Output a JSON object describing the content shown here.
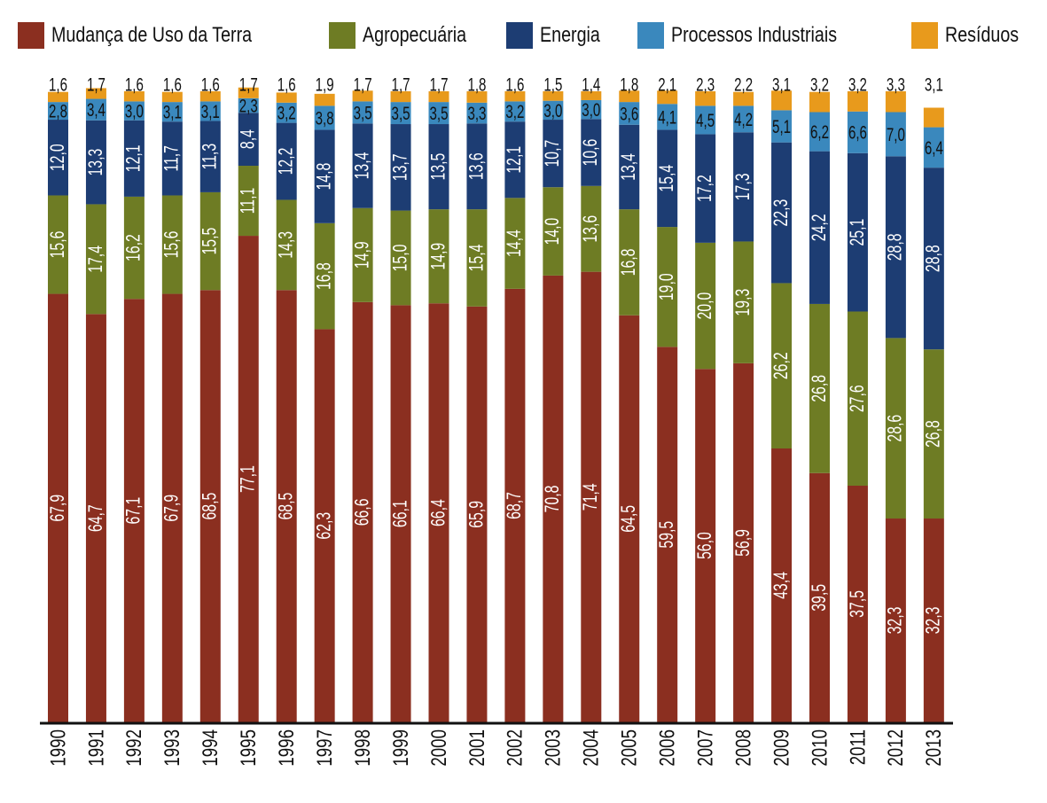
{
  "chart_data": {
    "type": "bar",
    "stacked": true,
    "percent": true,
    "title": "",
    "xlabel": "",
    "ylabel": "",
    "ylim": [
      0,
      100
    ],
    "grid": false,
    "legend_position": "top",
    "categories": [
      "1990",
      "1991",
      "1992",
      "1993",
      "1994",
      "1995",
      "1996",
      "1997",
      "1998",
      "1999",
      "2000",
      "2001",
      "2002",
      "2003",
      "2004",
      "2005",
      "2006",
      "2007",
      "2008",
      "2009",
      "2010",
      "2011",
      "2012",
      "2013"
    ],
    "series": [
      {
        "name": "Mudança de Uso da Terra",
        "color": "#8b2f20",
        "label_color": "#ffffff",
        "values": [
          67.9,
          64.7,
          67.1,
          67.9,
          68.5,
          77.1,
          68.5,
          62.3,
          66.6,
          66.1,
          66.4,
          65.9,
          68.7,
          70.8,
          71.4,
          64.5,
          59.5,
          56.0,
          56.9,
          43.4,
          39.5,
          37.5,
          32.3,
          32.3
        ],
        "labels": [
          "67,9",
          "64,7",
          "67,1",
          "67,9",
          "68,5",
          "77,1",
          "68,5",
          "62,3",
          "66,6",
          "66,1",
          "66,4",
          "65,9",
          "68,7",
          "70,8",
          "71,4",
          "64,5",
          "59,5",
          "56,0",
          "56,9",
          "43,4",
          "39,5",
          "37,5",
          "32,3",
          "32,3"
        ]
      },
      {
        "name": "Agropecuária",
        "color": "#6e7c24",
        "label_color": "#ffffff",
        "values": [
          15.6,
          17.4,
          16.2,
          15.6,
          15.5,
          11.1,
          14.3,
          16.8,
          14.9,
          15.0,
          14.9,
          15.4,
          14.4,
          14.0,
          13.6,
          16.8,
          19.0,
          20.0,
          19.3,
          26.2,
          26.8,
          27.6,
          28.6,
          26.8
        ],
        "labels": [
          "15,6",
          "17,4",
          "16,2",
          "15,6",
          "15,5",
          "11,1",
          "14,3",
          "16,8",
          "14,9",
          "15,0",
          "14,9",
          "15,4",
          "14,4",
          "14,0",
          "13,6",
          "16,8",
          "19,0",
          "20,0",
          "19,3",
          "26,2",
          "26,8",
          "27,6",
          "28,6",
          "26,8"
        ]
      },
      {
        "name": "Energia",
        "color": "#1d3d73",
        "label_color": "#ffffff",
        "values": [
          12.0,
          13.3,
          12.1,
          11.7,
          11.3,
          8.4,
          12.2,
          14.8,
          13.4,
          13.7,
          13.5,
          13.6,
          12.1,
          10.7,
          10.6,
          13.4,
          15.4,
          17.2,
          17.3,
          22.3,
          24.2,
          25.1,
          28.8,
          28.8
        ],
        "labels": [
          "12,0",
          "13,3",
          "12,1",
          "11,7",
          "11,3",
          "8,4",
          "12,2",
          "14,8",
          "13,4",
          "13,7",
          "13,5",
          "13,6",
          "12,1",
          "10,7",
          "10,6",
          "13,4",
          "15,4",
          "17,2",
          "17,3",
          "22,3",
          "24,2",
          "25,1",
          "28,8",
          "28,8"
        ]
      },
      {
        "name": "Processos Industriais",
        "color": "#3a88bd",
        "label_color": "#111111",
        "values": [
          2.8,
          3.4,
          3.0,
          3.1,
          3.1,
          2.3,
          3.2,
          3.8,
          3.5,
          3.5,
          3.5,
          3.3,
          3.2,
          3.0,
          3.0,
          3.6,
          4.1,
          4.5,
          4.2,
          5.1,
          6.2,
          6.6,
          7.0,
          6.4
        ],
        "labels": [
          "2,8",
          "3,4",
          "3,0",
          "3,1",
          "3,1",
          "2,3",
          "3,2",
          "3,8",
          "3,5",
          "3,5",
          "3,5",
          "3,3",
          "3,2",
          "3,0",
          "3,0",
          "3,6",
          "4,1",
          "4,5",
          "4,2",
          "5,1",
          "6,2",
          "6,6",
          "7,0",
          "6,4"
        ]
      },
      {
        "name": "Resíduos",
        "color": "#e89a1c",
        "label_color": "#111111",
        "values": [
          1.6,
          1.7,
          1.6,
          1.6,
          1.6,
          1.7,
          1.6,
          1.9,
          1.7,
          1.7,
          1.7,
          1.8,
          1.6,
          1.5,
          1.4,
          1.8,
          2.1,
          2.3,
          2.2,
          3.1,
          3.2,
          3.2,
          3.3,
          3.1
        ],
        "labels": [
          "1,6",
          "1,7",
          "1,6",
          "1,6",
          "1,6",
          "1,7",
          "1,6",
          "1,9",
          "1,7",
          "1,7",
          "1,7",
          "1,8",
          "1,6",
          "1,5",
          "1,4",
          "1,8",
          "2,1",
          "2,3",
          "2,2",
          "3,1",
          "3,2",
          "3,2",
          "3,3",
          "3,1"
        ]
      }
    ]
  }
}
